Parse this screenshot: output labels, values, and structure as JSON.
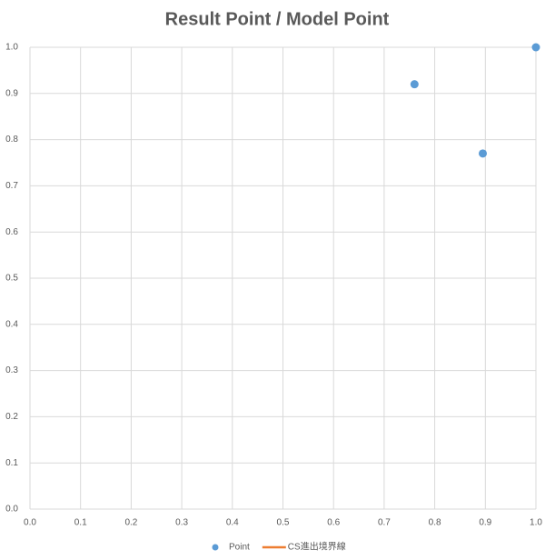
{
  "chart_data": {
    "type": "scatter",
    "title": "Result Point / Model Point",
    "series": [
      {
        "name": "Point",
        "color": "#5b9bd5",
        "x": [
          0.76,
          0.895,
          1.0
        ],
        "values": [
          0.92,
          0.77,
          1.0
        ]
      },
      {
        "name": "CS進出境界線",
        "color": "#ed7d31",
        "x": [],
        "values": []
      }
    ],
    "xlim": [
      0,
      1
    ],
    "ylim": [
      0,
      1
    ],
    "xticks": [
      {
        "value": 0,
        "label": "0.0"
      },
      0.1,
      0.2,
      0.3,
      0.4,
      0.5,
      0.6,
      0.7,
      0.8,
      0.9,
      {
        "value": 1,
        "label": "1.0"
      }
    ],
    "yticks": [
      {
        "value": 0,
        "label": "0.0"
      },
      0.1,
      0.2,
      0.3,
      0.4,
      0.5,
      0.6,
      0.7,
      0.8,
      0.9,
      {
        "value": 1,
        "label": "1.0"
      }
    ],
    "grid": true,
    "legend": "bottom"
  }
}
